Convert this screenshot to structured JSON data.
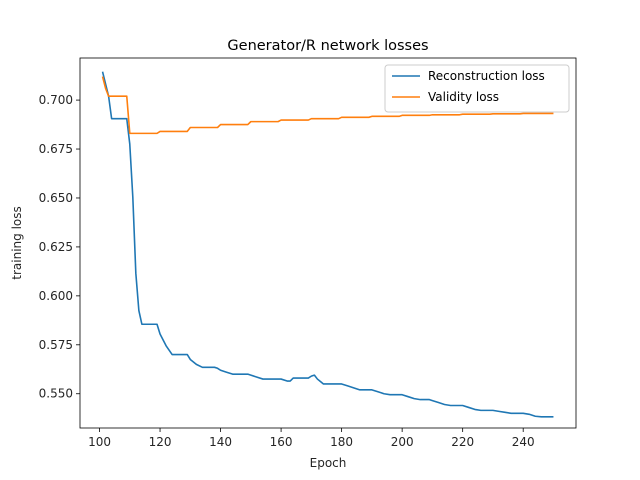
{
  "chart_data": {
    "type": "line",
    "title": "Generator/R network losses",
    "xlabel": "Epoch",
    "ylabel": "training loss",
    "xlim": [
      93.55,
      257.45
    ],
    "ylim": [
      0.5325,
      0.7215
    ],
    "x_ticks": [
      100,
      120,
      140,
      160,
      180,
      200,
      220,
      240
    ],
    "y_ticks": [
      0.55,
      0.575,
      0.6,
      0.625,
      0.65,
      0.675,
      0.7
    ],
    "y_tick_labels": [
      "0.550",
      "0.575",
      "0.600",
      "0.625",
      "0.650",
      "0.675",
      "0.700"
    ],
    "grid": false,
    "legend_position": "top-right",
    "series": [
      {
        "name": "Reconstruction loss",
        "color": "#1f77b4",
        "x": [
          101,
          103,
          104,
          106,
          108,
          109,
          110,
          111,
          112,
          113,
          114,
          116,
          118,
          119,
          120,
          122,
          124,
          126,
          128,
          129,
          130,
          132,
          134,
          136,
          138,
          139,
          140,
          142,
          144,
          146,
          148,
          149,
          150,
          152,
          154,
          156,
          158,
          159,
          160,
          162,
          163,
          164,
          166,
          168,
          169,
          170,
          171,
          172,
          174,
          176,
          178,
          179,
          180,
          182,
          184,
          186,
          188,
          189,
          190,
          192,
          194,
          196,
          198,
          199,
          200,
          202,
          204,
          206,
          208,
          209,
          210,
          212,
          214,
          216,
          218,
          219,
          220,
          222,
          224,
          226,
          228,
          229,
          230,
          232,
          234,
          236,
          238,
          239,
          240,
          242,
          244,
          246,
          248,
          249,
          250
        ],
        "y": [
          0.7145,
          0.702,
          0.6905,
          0.6905,
          0.6905,
          0.6905,
          0.6775,
          0.6505,
          0.6115,
          0.5925,
          0.5855,
          0.5855,
          0.5855,
          0.5855,
          0.5805,
          0.5745,
          0.57,
          0.57,
          0.57,
          0.57,
          0.5675,
          0.565,
          0.5635,
          0.5635,
          0.5635,
          0.563,
          0.562,
          0.561,
          0.56,
          0.56,
          0.56,
          0.56,
          0.5595,
          0.5585,
          0.5575,
          0.5575,
          0.5575,
          0.5575,
          0.5575,
          0.5565,
          0.5565,
          0.558,
          0.558,
          0.558,
          0.558,
          0.559,
          0.5595,
          0.5575,
          0.555,
          0.555,
          0.555,
          0.555,
          0.555,
          0.554,
          0.553,
          0.552,
          0.552,
          0.552,
          0.552,
          0.551,
          0.55,
          0.5495,
          0.5495,
          0.5495,
          0.5495,
          0.5485,
          0.5475,
          0.547,
          0.547,
          0.547,
          0.5465,
          0.5455,
          0.5445,
          0.544,
          0.544,
          0.544,
          0.544,
          0.543,
          0.542,
          0.5415,
          0.5415,
          0.5415,
          0.5415,
          0.541,
          0.5405,
          0.54,
          0.54,
          0.54,
          0.54,
          0.5395,
          0.5385,
          0.5382,
          0.5382,
          0.5382,
          0.5382
        ]
      },
      {
        "name": "Validity loss",
        "color": "#ff7f0e",
        "x": [
          101,
          102,
          103,
          104,
          106,
          108,
          109,
          110,
          112,
          114,
          116,
          118,
          119,
          120,
          122,
          124,
          126,
          128,
          129,
          130,
          132,
          134,
          136,
          138,
          139,
          140,
          142,
          144,
          146,
          148,
          149,
          150,
          152,
          154,
          156,
          158,
          159,
          160,
          162,
          164,
          166,
          168,
          169,
          170,
          172,
          174,
          176,
          178,
          179,
          180,
          182,
          184,
          186,
          188,
          189,
          190,
          192,
          194,
          196,
          198,
          199,
          200,
          202,
          204,
          206,
          208,
          209,
          210,
          212,
          214,
          216,
          218,
          219,
          220,
          222,
          224,
          226,
          228,
          229,
          230,
          232,
          234,
          236,
          238,
          239,
          240,
          242,
          244,
          246,
          248,
          249,
          250
        ],
        "y": [
          0.712,
          0.706,
          0.702,
          0.702,
          0.702,
          0.702,
          0.702,
          0.683,
          0.683,
          0.683,
          0.683,
          0.683,
          0.683,
          0.684,
          0.684,
          0.684,
          0.684,
          0.684,
          0.684,
          0.686,
          0.686,
          0.686,
          0.686,
          0.686,
          0.686,
          0.6875,
          0.6875,
          0.6875,
          0.6875,
          0.6875,
          0.6875,
          0.689,
          0.689,
          0.689,
          0.689,
          0.689,
          0.689,
          0.6898,
          0.6898,
          0.6898,
          0.6898,
          0.6898,
          0.6898,
          0.6905,
          0.6905,
          0.6905,
          0.6905,
          0.6905,
          0.6905,
          0.6912,
          0.6912,
          0.6912,
          0.6912,
          0.6912,
          0.6912,
          0.6917,
          0.6917,
          0.6917,
          0.6917,
          0.6917,
          0.6917,
          0.6922,
          0.6922,
          0.6922,
          0.6922,
          0.6922,
          0.6922,
          0.6925,
          0.6925,
          0.6925,
          0.6925,
          0.6925,
          0.6925,
          0.6928,
          0.6928,
          0.6928,
          0.6928,
          0.6928,
          0.6928,
          0.693,
          0.693,
          0.693,
          0.693,
          0.693,
          0.693,
          0.6932,
          0.6932,
          0.6932,
          0.6932,
          0.6932,
          0.6932,
          0.6932
        ]
      }
    ]
  }
}
